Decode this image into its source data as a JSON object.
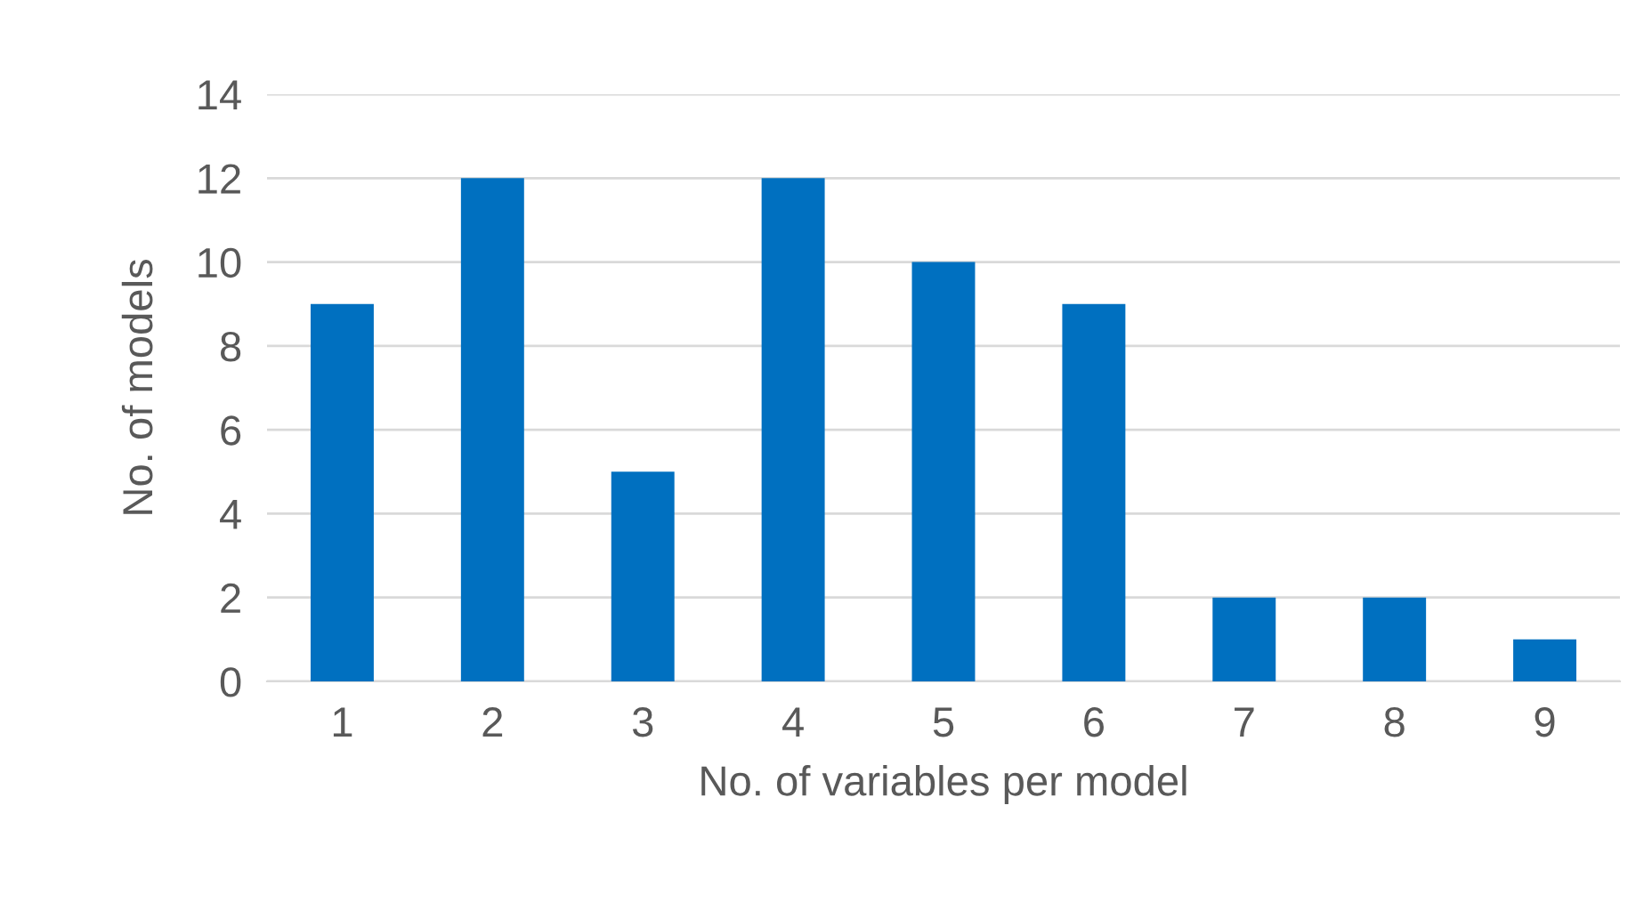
{
  "chart_data": {
    "type": "bar",
    "xlabel": "No. of variables per model",
    "ylabel": "No. of models",
    "categories": [
      "1",
      "2",
      "3",
      "4",
      "5",
      "6",
      "7",
      "8",
      "9"
    ],
    "values": [
      9,
      12,
      5,
      12,
      10,
      9,
      2,
      2,
      1
    ],
    "color": "#0070c0",
    "ylim": [
      0,
      14
    ],
    "yticks": [
      0,
      2,
      4,
      6,
      8,
      10,
      12,
      14
    ],
    "grid": "y"
  }
}
